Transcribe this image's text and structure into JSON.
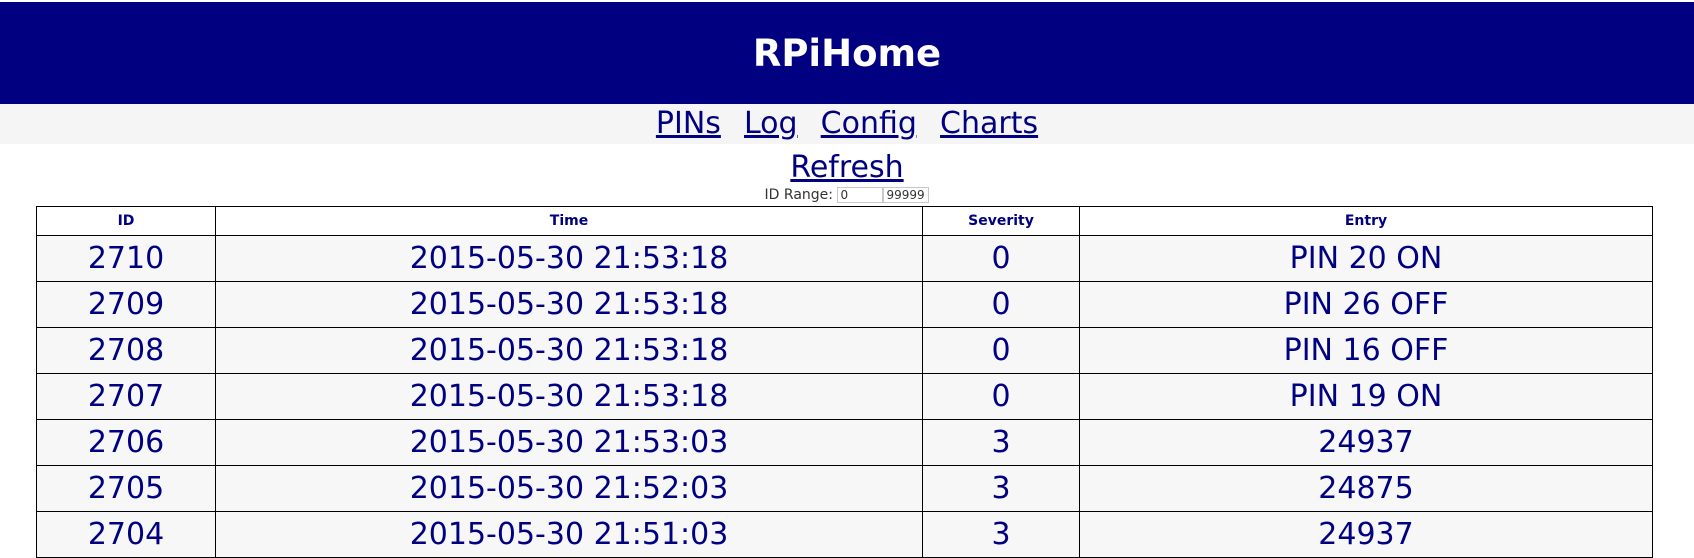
{
  "header": {
    "title": "RPiHome"
  },
  "nav": {
    "items": [
      {
        "label": "PINs"
      },
      {
        "label": "Log"
      },
      {
        "label": "Config"
      },
      {
        "label": "Charts"
      }
    ]
  },
  "actions": {
    "refresh_label": "Refresh"
  },
  "id_range": {
    "label": "ID Range:",
    "from_value": "0",
    "to_value": "99999"
  },
  "table": {
    "columns": [
      "ID",
      "Time",
      "Severity",
      "Entry"
    ],
    "rows": [
      {
        "id": "2710",
        "time": "2015-05-30 21:53:18",
        "severity": "0",
        "entry": "PIN 20 ON"
      },
      {
        "id": "2709",
        "time": "2015-05-30 21:53:18",
        "severity": "0",
        "entry": "PIN 26 OFF"
      },
      {
        "id": "2708",
        "time": "2015-05-30 21:53:18",
        "severity": "0",
        "entry": "PIN 16 OFF"
      },
      {
        "id": "2707",
        "time": "2015-05-30 21:53:18",
        "severity": "0",
        "entry": "PIN 19 ON"
      },
      {
        "id": "2706",
        "time": "2015-05-30 21:53:03",
        "severity": "3",
        "entry": "24937"
      },
      {
        "id": "2705",
        "time": "2015-05-30 21:52:03",
        "severity": "3",
        "entry": "24875"
      },
      {
        "id": "2704",
        "time": "2015-05-30 21:51:03",
        "severity": "3",
        "entry": "24937"
      }
    ]
  },
  "colors": {
    "header_bg": "#000080",
    "header_text": "#ffffff",
    "nav_bg": "#f5f5f5",
    "text_primary": "#000080",
    "row_bg": "#f7f7f7"
  }
}
